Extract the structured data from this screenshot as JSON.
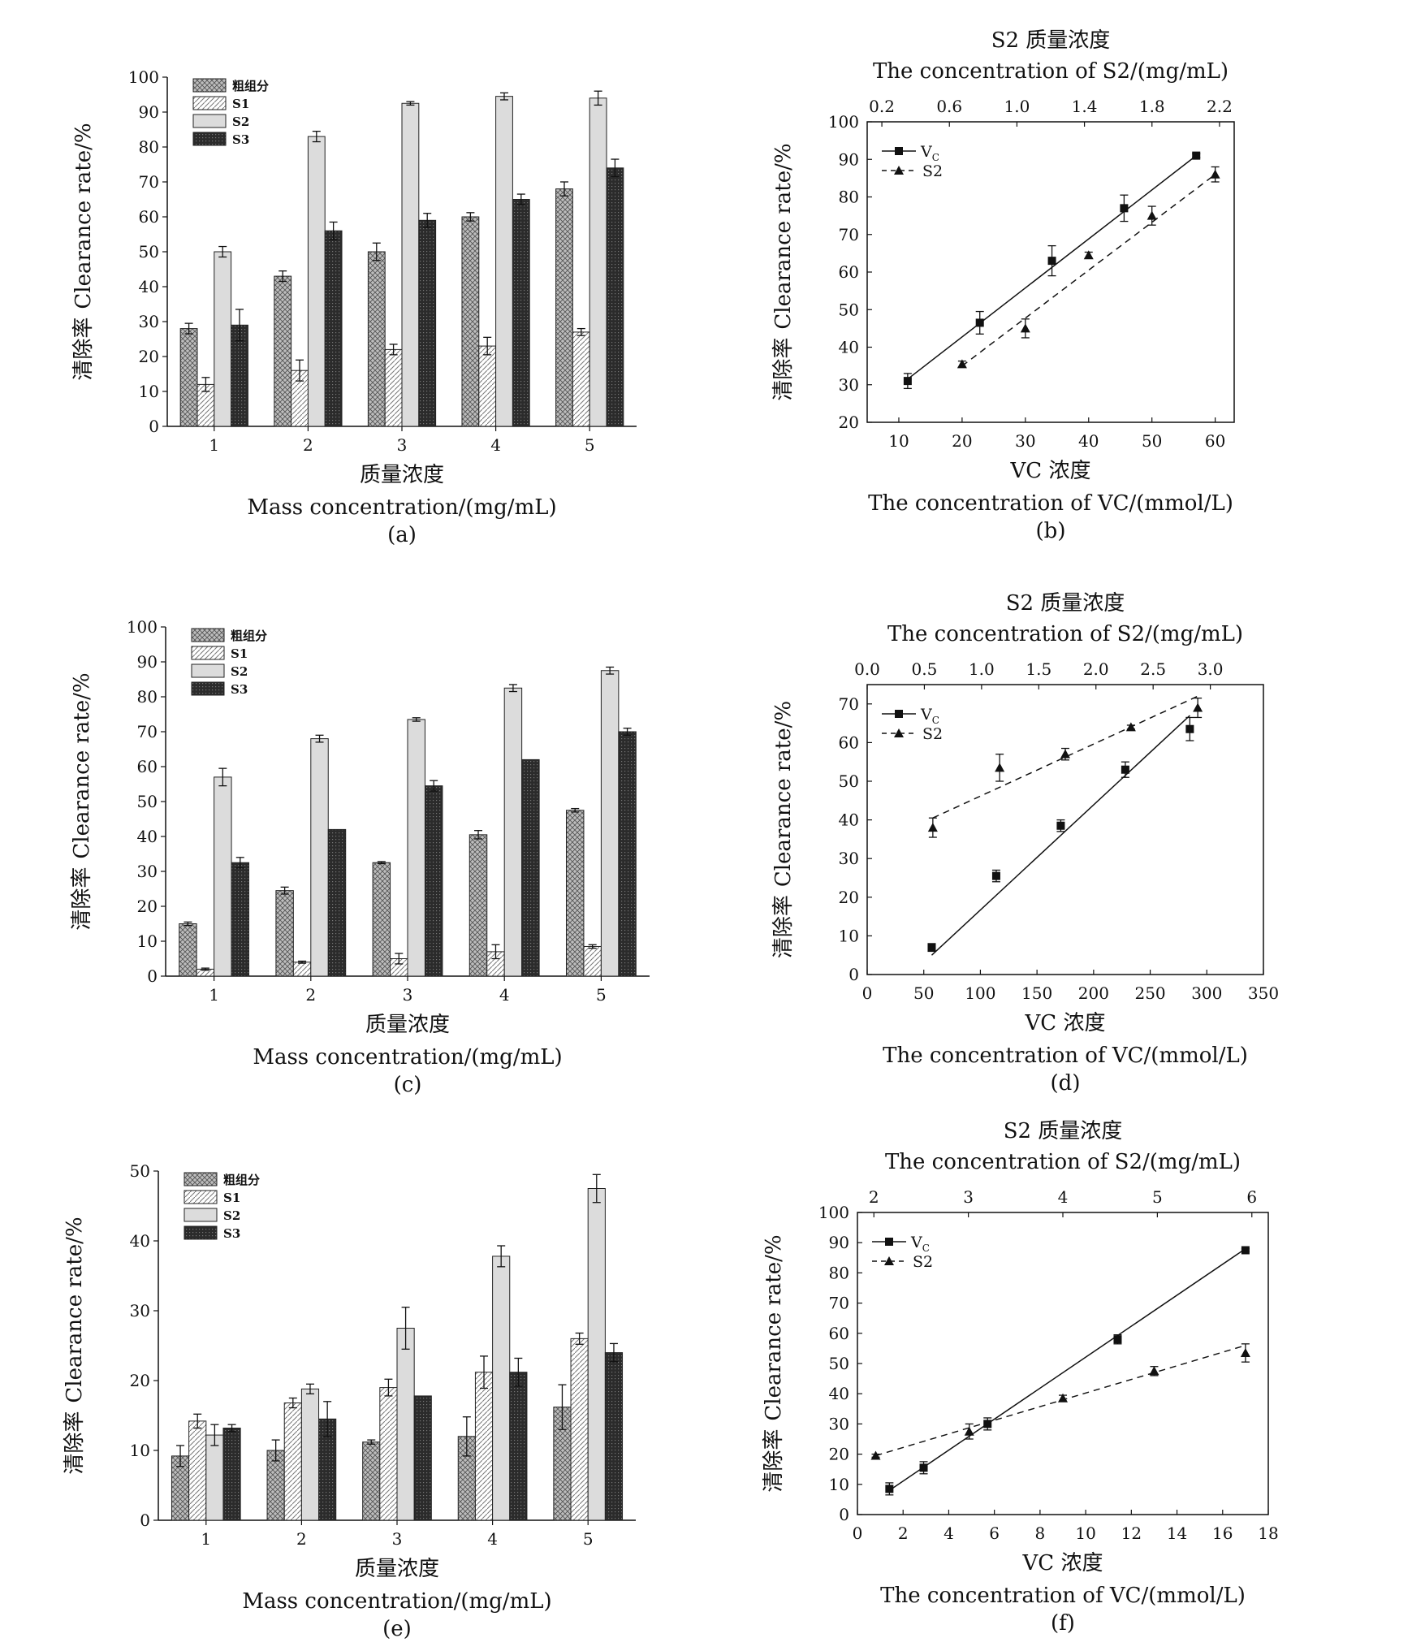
{
  "legend_names": [
    "粗组分",
    "S1",
    "S2",
    "S3"
  ],
  "colors": {
    "axis": "#111111",
    "s2_fill": "#dcdcdc",
    "s3_fill": "#2b2b2b",
    "crude_fill": "#a9a9a9"
  },
  "chart_data": [
    {
      "id": "a",
      "type": "bar",
      "caption": "(a)",
      "xlabel_cn": "质量浓度",
      "xlabel_en": "Mass concentration/(mg/mL)",
      "ylabel_cn": "清除率",
      "ylabel_en": "Clearance rate/%",
      "categories": [
        "1",
        "2",
        "3",
        "4",
        "5"
      ],
      "ylim": [
        0,
        100
      ],
      "yticks": [
        0,
        10,
        20,
        30,
        40,
        50,
        60,
        70,
        80,
        90,
        100
      ],
      "series": [
        {
          "name": "粗组分",
          "values": [
            28,
            43,
            50,
            60,
            68
          ],
          "errors": [
            1.5,
            1.5,
            2.5,
            1.2,
            2
          ]
        },
        {
          "name": "S1",
          "values": [
            12,
            16,
            22,
            23,
            27
          ],
          "errors": [
            2,
            3,
            1.5,
            2.5,
            1
          ]
        },
        {
          "name": "S2",
          "values": [
            50,
            83,
            92.5,
            94.5,
            94
          ],
          "errors": [
            1.5,
            1.5,
            0.5,
            1,
            2
          ]
        },
        {
          "name": "S3",
          "values": [
            29,
            56,
            59,
            65,
            74
          ],
          "errors": [
            4.5,
            2.5,
            2,
            1.5,
            2.5
          ]
        }
      ]
    },
    {
      "id": "b",
      "type": "line",
      "caption": "(b)",
      "xlabel_cn": "VC 浓度",
      "xlabel_en": "The concentration of VC/(mmol/L)",
      "top_label_cn": "S2 质量浓度",
      "top_label_en": "The concentration of S2/(mg/mL)",
      "ylabel_cn": "清除率",
      "ylabel_en": "Clearance rate/%",
      "xlim": [
        5,
        63
      ],
      "xticks": [
        10,
        20,
        30,
        40,
        50,
        60
      ],
      "ylim": [
        20,
        100
      ],
      "yticks": [
        20,
        30,
        40,
        50,
        60,
        70,
        80,
        90,
        100
      ],
      "top_ticks": [
        "0.2",
        "0.6",
        "1.0",
        "1.4",
        "1.8",
        "2.2"
      ],
      "vc": {
        "name": "Vc",
        "x": [
          11.4,
          22.8,
          34.2,
          45.6,
          57
        ],
        "y": [
          31,
          46.5,
          63,
          77,
          91
        ],
        "errors": [
          2,
          3,
          4,
          3.5,
          0.5
        ],
        "fit": [
          [
            11.4,
            31.5
          ],
          [
            57,
            91
          ]
        ]
      },
      "s2": {
        "name": "S2",
        "x": [
          20,
          30,
          40,
          50,
          60
        ],
        "y": [
          35.5,
          45,
          64.5,
          75,
          86
        ],
        "errors": [
          0.8,
          2.5,
          0.8,
          2.5,
          2
        ],
        "fit": [
          [
            20,
            35
          ],
          [
            60,
            86
          ]
        ]
      }
    },
    {
      "id": "c",
      "type": "bar",
      "caption": "(c)",
      "xlabel_cn": "质量浓度",
      "xlabel_en": "Mass concentration/(mg/mL)",
      "ylabel_cn": "清除率",
      "ylabel_en": "Clearance rate/%",
      "categories": [
        "1",
        "2",
        "3",
        "4",
        "5"
      ],
      "ylim": [
        0,
        100
      ],
      "yticks": [
        0,
        10,
        20,
        30,
        40,
        50,
        60,
        70,
        80,
        90,
        100
      ],
      "series": [
        {
          "name": "粗组分",
          "values": [
            15,
            24.5,
            32.5,
            40.5,
            47.5
          ],
          "errors": [
            0.5,
            1,
            0.3,
            1.2,
            0.5
          ]
        },
        {
          "name": "S1",
          "values": [
            2,
            4,
            5,
            7,
            8.5
          ],
          "errors": [
            0.3,
            0.3,
            1.5,
            2,
            0.5
          ]
        },
        {
          "name": "S2",
          "values": [
            57,
            68,
            73.5,
            82.5,
            87.5
          ],
          "errors": [
            2.5,
            1,
            0.5,
            1,
            1
          ]
        },
        {
          "name": "S3",
          "values": [
            32.5,
            42,
            54.5,
            62,
            70
          ],
          "errors": [
            1.5,
            0,
            1.5,
            0,
            1
          ]
        }
      ]
    },
    {
      "id": "d",
      "type": "line",
      "caption": "(d)",
      "xlabel_cn": "VC 浓度",
      "xlabel_en": "The concentration of VC/(mmol/L)",
      "top_label_cn": "S2 质量浓度",
      "top_label_en": "The concentration of S2/(mg/mL)",
      "ylabel_cn": "清除率",
      "ylabel_en": "Clearance rate/%",
      "xlim": [
        0,
        350
      ],
      "xticks": [
        0,
        50,
        100,
        150,
        200,
        250,
        300,
        350
      ],
      "ylim": [
        0,
        75
      ],
      "yticks": [
        0,
        10,
        20,
        30,
        40,
        50,
        60,
        70
      ],
      "top_ticks": [
        "0.0",
        "0.5",
        "1.0",
        "1.5",
        "2.0",
        "2.5",
        "3.0"
      ],
      "vc": {
        "name": "Vc",
        "x": [
          57,
          114,
          171,
          228,
          285
        ],
        "y": [
          7,
          25.5,
          38.5,
          53,
          63.5
        ],
        "errors": [
          1,
          1.5,
          1.5,
          2,
          3
        ],
        "fit": [
          [
            57,
            5
          ],
          [
            285,
            67
          ]
        ]
      },
      "s2": {
        "name": "S2",
        "x": [
          58,
          117,
          175,
          233,
          292
        ],
        "y": [
          38,
          53.5,
          57,
          64,
          69
        ],
        "errors": [
          2.5,
          3.5,
          1.5,
          0.5,
          2.5
        ],
        "fit": [
          [
            58,
            40.5
          ],
          [
            292,
            72
          ]
        ]
      }
    },
    {
      "id": "e",
      "type": "bar",
      "caption": "(e)",
      "xlabel_cn": "质量浓度",
      "xlabel_en": "Mass concentration/(mg/mL)",
      "ylabel_cn": "清除率",
      "ylabel_en": "Clearance rate/%",
      "categories": [
        "1",
        "2",
        "3",
        "4",
        "5"
      ],
      "ylim": [
        0,
        50
      ],
      "yticks": [
        0,
        10,
        20,
        30,
        40,
        50
      ],
      "series": [
        {
          "name": "粗组分",
          "values": [
            9.2,
            10,
            11.2,
            12,
            16.2
          ],
          "errors": [
            1.5,
            1.5,
            0.3,
            2.8,
            3.2
          ]
        },
        {
          "name": "S1",
          "values": [
            14.2,
            16.8,
            19,
            21.2,
            26
          ],
          "errors": [
            1,
            0.7,
            1.2,
            2.3,
            0.8
          ]
        },
        {
          "name": "S2",
          "values": [
            12.2,
            18.8,
            27.5,
            37.8,
            47.5
          ],
          "errors": [
            1.5,
            0.7,
            3,
            1.5,
            2
          ]
        },
        {
          "name": "S3",
          "values": [
            13.2,
            14.5,
            17.8,
            21.2,
            24
          ],
          "errors": [
            0.5,
            2.5,
            0,
            2,
            1.3
          ]
        }
      ]
    },
    {
      "id": "f",
      "type": "line",
      "caption": "(f)",
      "xlabel_cn": "VC 浓度",
      "xlabel_en": "The concentration of VC/(mmol/L)",
      "top_label_cn": "S2 质量浓度",
      "top_label_en": "The concentration of S2/(mg/mL)",
      "ylabel_cn": "清除率",
      "ylabel_en": "Clearance rate/%",
      "xlim": [
        0,
        18
      ],
      "xticks": [
        0,
        2,
        4,
        6,
        8,
        10,
        12,
        14,
        16,
        18
      ],
      "ylim": [
        0,
        100
      ],
      "yticks": [
        0,
        10,
        20,
        30,
        40,
        50,
        60,
        70,
        80,
        90,
        100
      ],
      "top_ticks": [
        "2",
        "3",
        "4",
        "5",
        "6"
      ],
      "vc": {
        "name": "Vc",
        "x": [
          1.4,
          2.9,
          5.7,
          11.4,
          17
        ],
        "y": [
          8.5,
          15.5,
          30,
          58,
          87.5
        ],
        "errors": [
          2,
          2,
          2,
          1.5,
          0.5
        ],
        "fit": [
          [
            1.4,
            8
          ],
          [
            17,
            88
          ]
        ]
      },
      "s2": {
        "name": "S2",
        "x": [
          0.8,
          4.9,
          9,
          13,
          17
        ],
        "y": [
          19.5,
          27.5,
          38.5,
          47.5,
          53.5
        ],
        "errors": [
          0.5,
          2.5,
          1,
          1.5,
          3
        ],
        "fit": [
          [
            0.8,
            19.5
          ],
          [
            17,
            56
          ]
        ]
      }
    }
  ]
}
